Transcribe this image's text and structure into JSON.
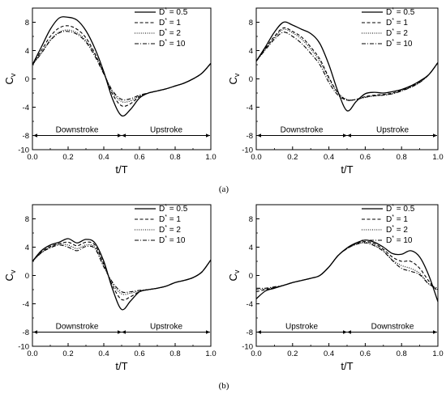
{
  "chart_data": [
    {
      "type": "line",
      "ylabel": "Cv",
      "xlabel": "t/T",
      "xlim": [
        0.0,
        1.0
      ],
      "ylim": [
        -10,
        10
      ],
      "xticks": [
        "0.0",
        "0.2",
        "0.4",
        "0.6",
        "0.8",
        "1.0"
      ],
      "yticks": [
        "8",
        "4",
        "0",
        "-4",
        "-8",
        "-10"
      ],
      "annotations": [
        "Downstroke",
        "Upstroke"
      ],
      "legend_position": "top-right",
      "x": [
        0.0,
        0.05,
        0.1,
        0.15,
        0.2,
        0.25,
        0.3,
        0.35,
        0.4,
        0.45,
        0.5,
        0.55,
        0.6,
        0.65,
        0.7,
        0.75,
        0.8,
        0.85,
        0.9,
        0.95,
        1.0
      ],
      "series": [
        {
          "name": "D* = 0.5",
          "values": [
            2.0,
            4.5,
            7.0,
            8.6,
            8.7,
            8.3,
            6.8,
            4.3,
            1.0,
            -2.9,
            -5.2,
            -4.3,
            -2.7,
            -2.0,
            -1.7,
            -1.4,
            -1.0,
            -0.6,
            0.0,
            0.8,
            2.2
          ]
        },
        {
          "name": "D* = 1",
          "values": [
            2.0,
            4.0,
            6.0,
            7.2,
            7.5,
            7.0,
            5.8,
            3.6,
            0.8,
            -2.2,
            -3.8,
            -3.5,
            -2.5,
            -2.0,
            -1.7,
            -1.4,
            -1.0,
            -0.6,
            0.0,
            0.8,
            2.2
          ]
        },
        {
          "name": "D* = 2",
          "values": [
            2.0,
            3.7,
            5.5,
            6.6,
            6.9,
            6.5,
            5.4,
            3.4,
            0.8,
            -1.9,
            -3.2,
            -3.1,
            -2.4,
            -2.0,
            -1.7,
            -1.4,
            -1.0,
            -0.6,
            0.0,
            0.8,
            2.2
          ]
        },
        {
          "name": "D* = 10",
          "values": [
            2.0,
            3.6,
            5.4,
            6.5,
            6.7,
            6.3,
            5.2,
            3.2,
            0.7,
            -1.7,
            -2.9,
            -2.8,
            -2.3,
            -2.0,
            -1.7,
            -1.4,
            -1.0,
            -0.6,
            0.0,
            0.8,
            2.2
          ]
        }
      ]
    },
    {
      "type": "line",
      "ylabel": "Cv",
      "xlabel": "t/T",
      "xlim": [
        0.0,
        1.0
      ],
      "ylim": [
        -10,
        10
      ],
      "xticks": [
        "0.0",
        "0.2",
        "0.4",
        "0.6",
        "0.8",
        "1.0"
      ],
      "yticks": [
        "8",
        "4",
        "0",
        "-4",
        "-8",
        "-10"
      ],
      "annotations": [
        "Downstroke",
        "Upstroke"
      ],
      "legend_position": "top-right",
      "x": [
        0.0,
        0.05,
        0.1,
        0.15,
        0.2,
        0.25,
        0.3,
        0.35,
        0.4,
        0.45,
        0.5,
        0.55,
        0.6,
        0.65,
        0.7,
        0.75,
        0.8,
        0.85,
        0.9,
        0.95,
        1.0
      ],
      "series": [
        {
          "name": "D* = 0.5",
          "values": [
            2.5,
            4.5,
            6.6,
            8.0,
            7.6,
            7.0,
            6.4,
            5.0,
            2.0,
            -1.8,
            -4.5,
            -3.2,
            -2.1,
            -1.9,
            -2.0,
            -1.8,
            -1.5,
            -1.0,
            -0.3,
            0.6,
            2.3
          ]
        },
        {
          "name": "D* = 1",
          "values": [
            2.5,
            4.3,
            6.0,
            7.2,
            6.7,
            5.9,
            4.5,
            2.8,
            0.2,
            -2.0,
            -3.0,
            -2.9,
            -2.5,
            -2.3,
            -2.2,
            -2.0,
            -1.6,
            -1.1,
            -0.4,
            0.6,
            2.3
          ]
        },
        {
          "name": "D* = 2",
          "values": [
            2.5,
            4.2,
            5.8,
            7.0,
            6.5,
            5.6,
            4.2,
            2.5,
            0.0,
            -2.0,
            -2.9,
            -2.9,
            -2.6,
            -2.4,
            -2.3,
            -2.1,
            -1.7,
            -1.2,
            -0.5,
            0.6,
            2.3
          ]
        },
        {
          "name": "D* = 10",
          "values": [
            2.5,
            4.1,
            5.6,
            6.6,
            6.0,
            5.0,
            3.6,
            2.0,
            -0.5,
            -2.3,
            -3.0,
            -2.9,
            -2.6,
            -2.4,
            -2.3,
            -2.1,
            -1.7,
            -1.2,
            -0.5,
            0.6,
            2.3
          ]
        }
      ]
    },
    {
      "type": "line",
      "ylabel": "Cv",
      "xlabel": "t/T",
      "xlim": [
        0.0,
        1.0
      ],
      "ylim": [
        -10,
        10
      ],
      "xticks": [
        "0.0",
        "0.2",
        "0.4",
        "0.6",
        "0.8",
        "1.0"
      ],
      "yticks": [
        "8",
        "4",
        "0",
        "-4",
        "-8",
        "-10"
      ],
      "annotations": [
        "Downstroke",
        "Upstroke"
      ],
      "legend_position": "top-right",
      "x": [
        0.0,
        0.05,
        0.1,
        0.15,
        0.2,
        0.25,
        0.3,
        0.35,
        0.4,
        0.45,
        0.5,
        0.55,
        0.6,
        0.65,
        0.7,
        0.75,
        0.8,
        0.85,
        0.9,
        0.95,
        1.0
      ],
      "series": [
        {
          "name": "D* = 0.5",
          "values": [
            2.0,
            3.5,
            4.3,
            4.7,
            5.2,
            4.6,
            5.1,
            4.6,
            2.0,
            -2.0,
            -4.8,
            -3.6,
            -2.3,
            -2.0,
            -1.8,
            -1.5,
            -1.0,
            -0.7,
            -0.3,
            0.5,
            2.2
          ]
        },
        {
          "name": "D* = 1",
          "values": [
            2.0,
            3.3,
            4.1,
            4.5,
            4.7,
            4.2,
            4.7,
            4.3,
            1.6,
            -1.5,
            -3.4,
            -3.0,
            -2.3,
            -2.0,
            -1.8,
            -1.5,
            -1.0,
            -0.7,
            -0.3,
            0.5,
            2.2
          ]
        },
        {
          "name": "D* = 2",
          "values": [
            2.0,
            3.2,
            4.0,
            4.4,
            4.3,
            3.8,
            4.3,
            4.0,
            1.4,
            -1.2,
            -2.6,
            -2.5,
            -2.2,
            -2.0,
            -1.8,
            -1.5,
            -1.0,
            -0.7,
            -0.3,
            0.5,
            2.2
          ]
        },
        {
          "name": "D* = 10",
          "values": [
            2.0,
            3.2,
            3.9,
            4.3,
            4.0,
            3.5,
            4.1,
            3.8,
            1.2,
            -1.0,
            -2.3,
            -2.3,
            -2.1,
            -2.0,
            -1.8,
            -1.5,
            -1.0,
            -0.7,
            -0.3,
            0.5,
            2.2
          ]
        }
      ]
    },
    {
      "type": "line",
      "ylabel": "Cv",
      "xlabel": "t/T",
      "xlim": [
        0.0,
        1.0
      ],
      "ylim": [
        -10,
        10
      ],
      "xticks": [
        "0.0",
        "0.2",
        "0.4",
        "0.6",
        "0.8",
        "1.0"
      ],
      "yticks": [
        "8",
        "4",
        "0",
        "-4",
        "-8",
        "-10"
      ],
      "annotations": [
        "Upstroke",
        "Downstroke"
      ],
      "legend_position": "top-right",
      "x": [
        0.0,
        0.05,
        0.1,
        0.15,
        0.2,
        0.25,
        0.3,
        0.35,
        0.4,
        0.45,
        0.5,
        0.55,
        0.6,
        0.65,
        0.7,
        0.75,
        0.8,
        0.85,
        0.9,
        0.95,
        1.0
      ],
      "series": [
        {
          "name": "D* = 0.5",
          "values": [
            -3.3,
            -2.2,
            -1.8,
            -1.4,
            -1.0,
            -0.7,
            -0.4,
            0.0,
            1.2,
            2.8,
            3.9,
            4.6,
            5.0,
            4.7,
            4.0,
            3.1,
            3.0,
            3.5,
            2.6,
            0.0,
            -3.7
          ]
        },
        {
          "name": "D* = 1",
          "values": [
            -2.3,
            -2.0,
            -1.7,
            -1.4,
            -1.0,
            -0.7,
            -0.4,
            0.0,
            1.2,
            2.8,
            3.8,
            4.5,
            4.8,
            4.5,
            3.7,
            2.6,
            2.0,
            2.0,
            1.0,
            -0.8,
            -2.3
          ]
        },
        {
          "name": "D* = 2",
          "values": [
            -2.0,
            -1.9,
            -1.7,
            -1.4,
            -1.0,
            -0.7,
            -0.4,
            0.0,
            1.2,
            2.8,
            3.8,
            4.4,
            4.7,
            4.3,
            3.5,
            2.2,
            1.4,
            1.0,
            0.3,
            -1.2,
            -2.0
          ]
        },
        {
          "name": "D* = 10",
          "values": [
            -1.8,
            -1.8,
            -1.6,
            -1.4,
            -1.0,
            -0.7,
            -0.4,
            0.0,
            1.2,
            2.8,
            3.8,
            4.4,
            4.6,
            4.2,
            3.4,
            2.1,
            1.0,
            0.6,
            0.1,
            -1.2,
            -1.8
          ]
        }
      ]
    }
  ],
  "captions": [
    "(a)",
    "(b)"
  ],
  "styles": {
    "series_dash": [
      "solid",
      "dashed",
      "dotted",
      "dashdot"
    ],
    "line_color": "#000000"
  }
}
